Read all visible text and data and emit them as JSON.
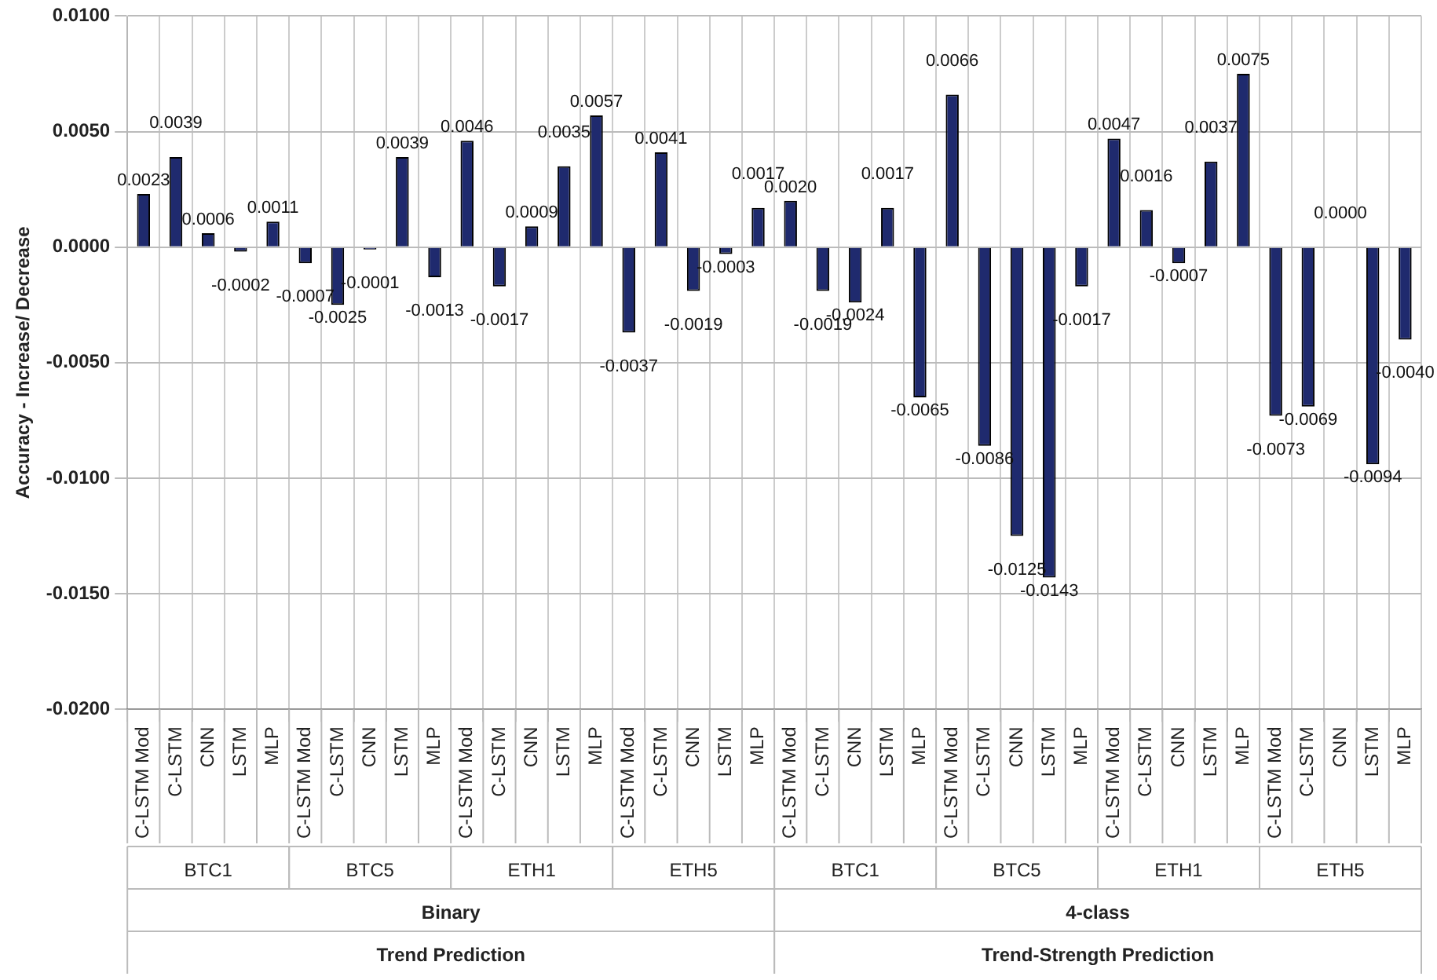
{
  "chart_data": {
    "type": "bar",
    "ylabel": "Accuracy - Increase/ Decrease",
    "categories": [
      "C-LSTM Mod",
      "C-LSTM",
      "CNN",
      "LSTM",
      "MLP",
      "C-LSTM Mod",
      "C-LSTM",
      "CNN",
      "LSTM",
      "MLP",
      "C-LSTM Mod",
      "C-LSTM",
      "CNN",
      "LSTM",
      "MLP",
      "C-LSTM Mod",
      "C-LSTM",
      "CNN",
      "LSTM",
      "MLP",
      "C-LSTM Mod",
      "C-LSTM",
      "CNN",
      "LSTM",
      "MLP",
      "C-LSTM Mod",
      "C-LSTM",
      "CNN",
      "LSTM",
      "MLP",
      "C-LSTM Mod",
      "C-LSTM",
      "CNN",
      "LSTM",
      "MLP",
      "C-LSTM Mod",
      "C-LSTM",
      "CNN",
      "LSTM",
      "MLP"
    ],
    "values": [
      0.0023,
      0.0039,
      0.0006,
      -0.0002,
      0.0011,
      -0.0007,
      -0.0025,
      -0.0001,
      0.0039,
      -0.0013,
      0.0046,
      -0.0017,
      0.0009,
      0.0035,
      0.0057,
      -0.0037,
      0.0041,
      -0.0019,
      -0.0003,
      0.0017,
      0.002,
      -0.0019,
      -0.0024,
      0.0017,
      -0.0065,
      0.0066,
      -0.0086,
      -0.0125,
      -0.0143,
      -0.0017,
      0.0047,
      0.0016,
      -0.0007,
      0.0037,
      0.0075,
      -0.0073,
      -0.0069,
      0.0,
      -0.0094,
      -0.004
    ],
    "value_labels": [
      "0.0023",
      "0.0039",
      "0.0006",
      "-0.0002",
      "0.0011",
      "-0.0007",
      "-0.0025",
      "-0.0001",
      "0.0039",
      "-0.0013",
      "0.0046",
      "-0.0017",
      "0.0009",
      "0.0035",
      "0.0057",
      "-0.0037",
      "0.0041",
      "-0.0019",
      "-0.0003",
      "0.0017",
      "0.0020",
      "-0.0019",
      "-0.0024",
      "0.0017",
      "-0.0065",
      "0.0066",
      "-0.0086",
      "-0.0125",
      "-0.0143",
      "-0.0017",
      "0.0047",
      "0.0016",
      "-0.0007",
      "0.0037",
      "0.0075",
      "-0.0073",
      "-0.0069",
      "0.0000",
      "-0.0094",
      "-0.0040"
    ],
    "color": "#1f2a6e",
    "ylim": [
      -0.02,
      0.01
    ],
    "yticks": [
      {
        "value": -0.02,
        "label": "-0.0200"
      },
      {
        "value": -0.015,
        "label": "-0.0150"
      },
      {
        "value": -0.01,
        "label": "-0.0100"
      },
      {
        "value": -0.005,
        "label": "-0.0050"
      },
      {
        "value": 0,
        "label": "0.0000"
      },
      {
        "value": 0.005,
        "label": "0.0050"
      },
      {
        "value": 0.01,
        "label": "0.0100"
      }
    ],
    "annotations": [
      "BTC1",
      "BTC5",
      "ETH1",
      "ETH5",
      "BTC1",
      "BTC5",
      "ETH1",
      "ETH5",
      "Binary",
      "4-class",
      "Trend Prediction",
      "Trend-Strength Prediction"
    ],
    "grid": true,
    "legend": false
  }
}
